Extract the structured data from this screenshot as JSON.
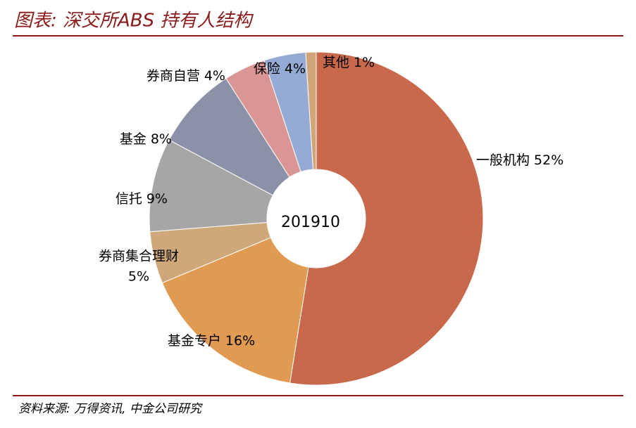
{
  "chart_data": {
    "type": "pie",
    "title": "图表: 深交所ABS 持有人结构",
    "source": "资料来源: 万得资讯, 中金公司研究",
    "center_label": "201910",
    "categories": [
      "一般机构",
      "基金专户",
      "券商集合理财",
      "信托",
      "基金",
      "券商自营",
      "保险",
      "其他"
    ],
    "values": [
      52,
      16,
      5,
      9,
      8,
      4,
      4,
      1
    ],
    "value_labels": [
      "52%",
      "16%",
      "5%",
      "9%",
      "8%",
      "4%",
      "4%",
      "1%"
    ],
    "colors": [
      "#c8694b",
      "#e09a52",
      "#cfa87a",
      "#a6a6a6",
      "#8b91a6",
      "#d99694",
      "#95aad4",
      "#d0a57a"
    ]
  }
}
